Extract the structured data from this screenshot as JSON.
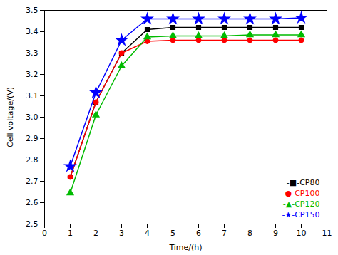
{
  "chart_data": {
    "type": "line",
    "xlabel": "Time/(h)",
    "ylabel": "Cell voltage/(V)",
    "x": [
      1,
      2,
      3,
      4,
      5,
      6,
      7,
      8,
      9,
      10
    ],
    "series": [
      {
        "name": "-■-CP80",
        "color": "#000000",
        "marker": "square",
        "line_style": "solid",
        "values": [
          2.72,
          3.07,
          3.3,
          3.41,
          3.42,
          3.42,
          3.42,
          3.42,
          3.42,
          3.42
        ]
      },
      {
        "name": "-●-CP100",
        "color": "#ff0000",
        "marker": "circle",
        "line_style": "solid",
        "values": [
          2.72,
          3.07,
          3.3,
          3.355,
          3.36,
          3.36,
          3.36,
          3.36,
          3.36,
          3.36
        ]
      },
      {
        "name": "-▲-CP120",
        "color": "#00bb00",
        "marker": "triangle",
        "line_style": "solid",
        "values": [
          2.645,
          3.01,
          3.24,
          3.375,
          3.38,
          3.38,
          3.38,
          3.385,
          3.385,
          3.385
        ]
      },
      {
        "name": "-★-CP150",
        "color": "#0000ff",
        "marker": "star",
        "line_style": "solid",
        "values": [
          2.77,
          3.115,
          3.36,
          3.46,
          3.46,
          3.46,
          3.46,
          3.46,
          3.46,
          3.465
        ]
      }
    ],
    "xlim": [
      0,
      11
    ],
    "ylim": [
      2.5,
      3.5
    ],
    "xticks": [
      0,
      1,
      2,
      3,
      4,
      5,
      6,
      7,
      8,
      9,
      10,
      11
    ],
    "yticks": [
      2.5,
      2.6,
      2.7,
      2.8,
      2.9,
      {
        "value": 3.0,
        "label": "3.0"
      },
      3.1,
      3.2,
      3.3,
      3.4,
      3.5
    ],
    "grid": false,
    "legend": "lower right"
  }
}
